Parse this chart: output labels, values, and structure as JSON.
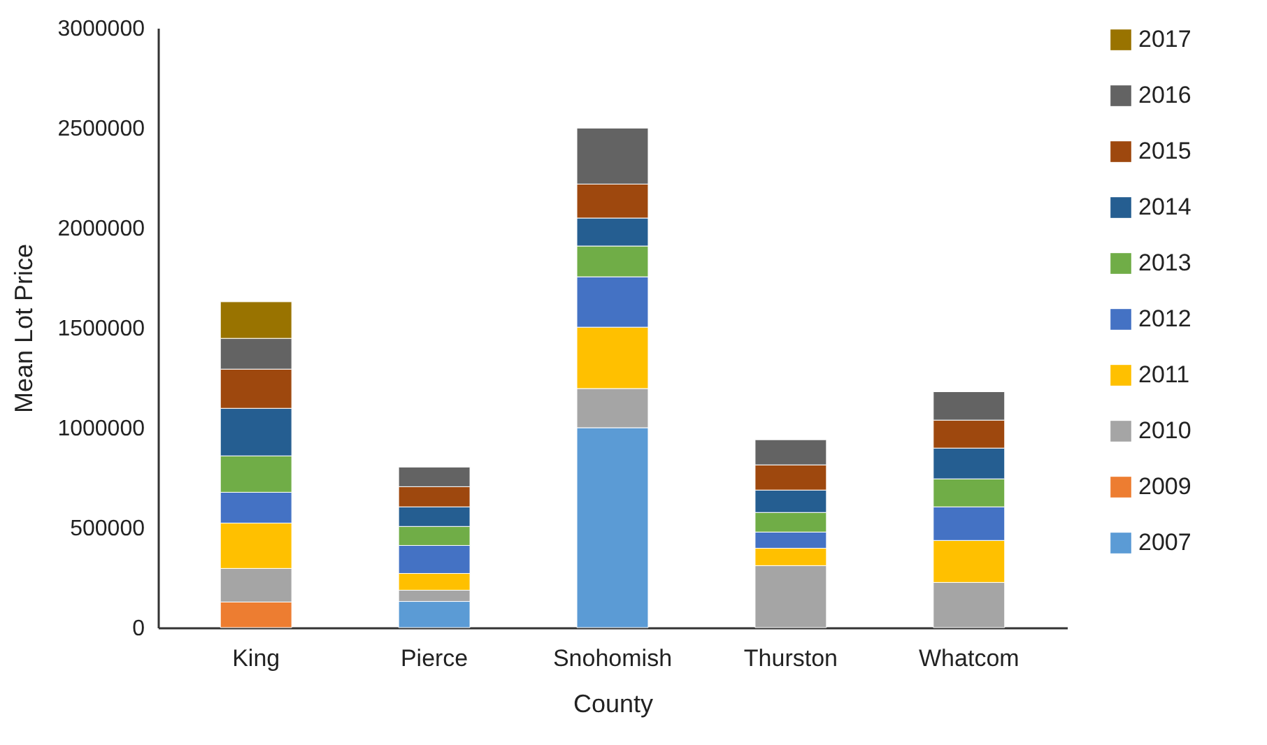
{
  "chart_data": {
    "type": "bar",
    "stacked": true,
    "xlabel": "County",
    "ylabel": "Mean Lot Price",
    "categories": [
      "King",
      "Pierce",
      "Snohomish",
      "Thurston",
      "Whatcom"
    ],
    "series": [
      {
        "name": "2007",
        "color": "#5b9bd5",
        "values": [
          null,
          131000,
          1000000,
          null,
          null
        ]
      },
      {
        "name": "2009",
        "color": "#ed7d31",
        "values": [
          128000,
          null,
          null,
          null,
          null
        ]
      },
      {
        "name": "2010",
        "color": "#a5a5a5",
        "values": [
          168000,
          56000,
          196000,
          310000,
          226000
        ]
      },
      {
        "name": "2011",
        "color": "#ffc000",
        "values": [
          227000,
          84000,
          307000,
          87000,
          210000
        ]
      },
      {
        "name": "2012",
        "color": "#4472c4",
        "values": [
          154000,
          140000,
          252000,
          81000,
          168000
        ]
      },
      {
        "name": "2013",
        "color": "#70ad47",
        "values": [
          182000,
          95000,
          154000,
          98000,
          140000
        ]
      },
      {
        "name": "2014",
        "color": "#255e91",
        "values": [
          238000,
          98000,
          140000,
          112000,
          154000
        ]
      },
      {
        "name": "2015",
        "color": "#9e480e",
        "values": [
          196000,
          101000,
          170000,
          126000,
          140000
        ]
      },
      {
        "name": "2016",
        "color": "#636363",
        "values": [
          154000,
          98000,
          280000,
          126000,
          142000
        ]
      },
      {
        "name": "2017",
        "color": "#997300",
        "values": [
          183000,
          null,
          null,
          null,
          null
        ]
      }
    ],
    "ylim": [
      0,
      3000000
    ],
    "yticks": [
      0,
      500000,
      1000000,
      1500000,
      2000000,
      2500000,
      3000000
    ],
    "legend": "right"
  }
}
